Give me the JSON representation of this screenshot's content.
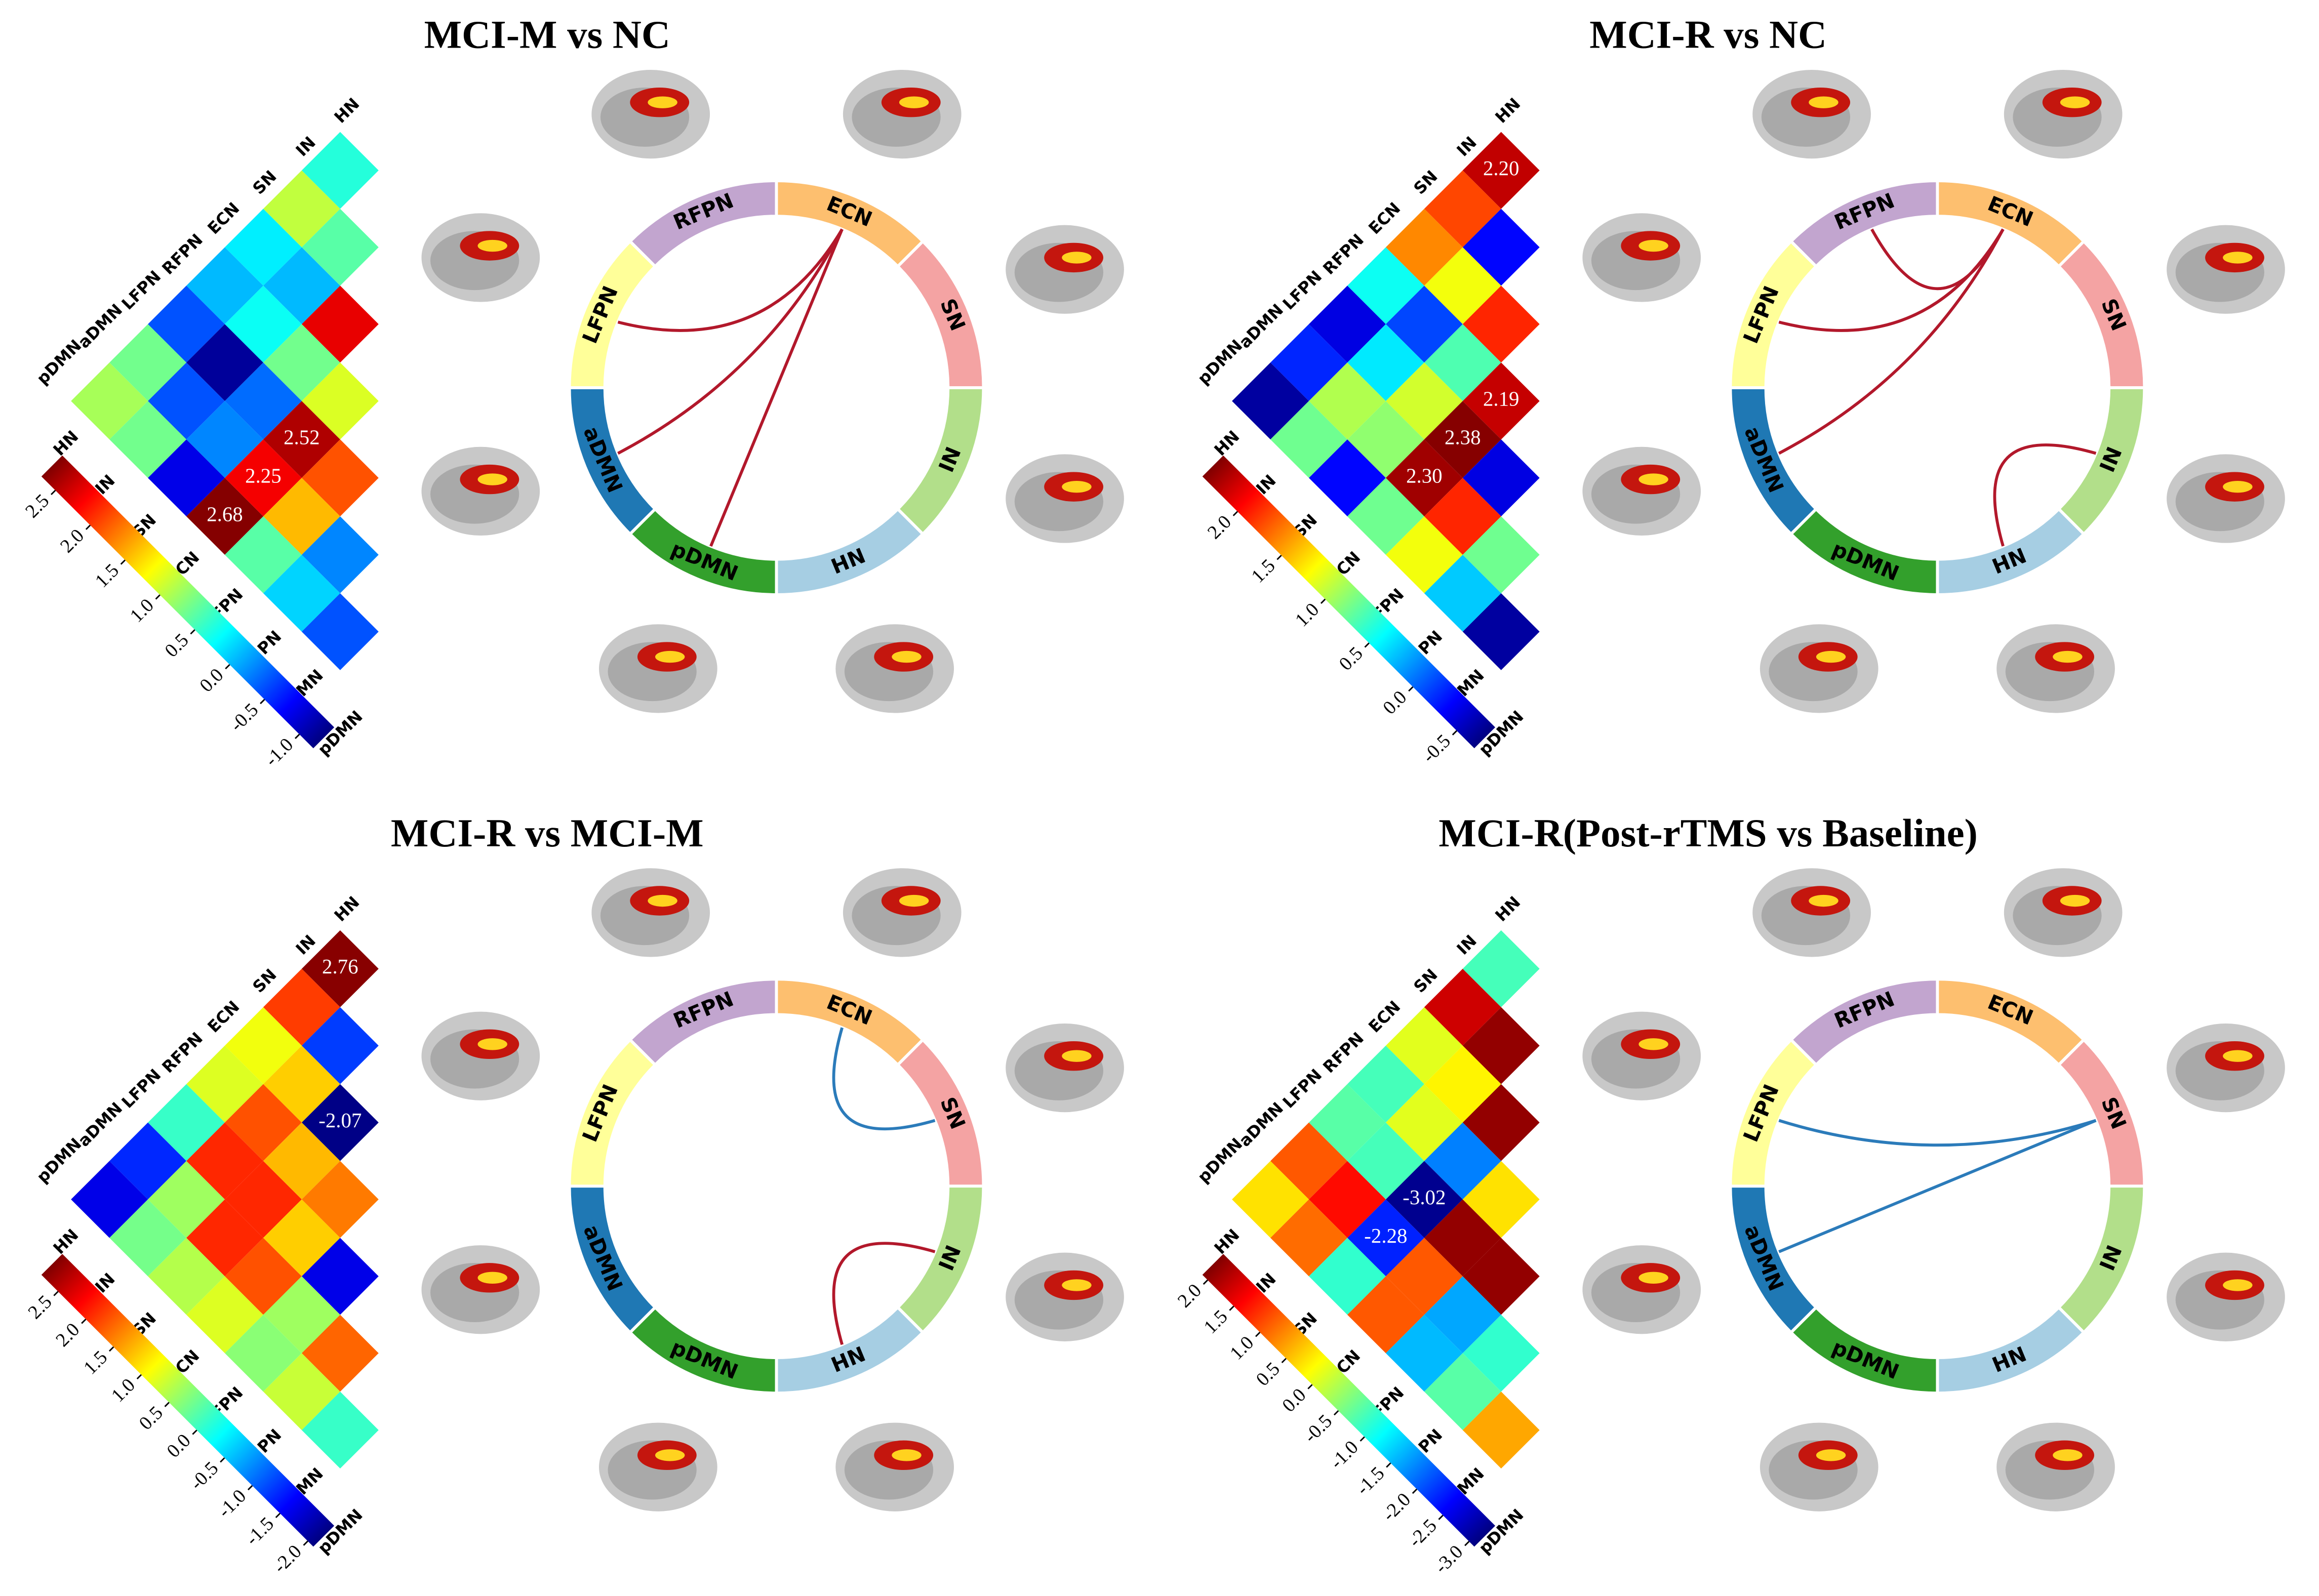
{
  "chart_data": [
    {
      "type": "heatmap",
      "title": "MCI-M vs NC",
      "networks": [
        "HN",
        "IN",
        "SN",
        "ECN",
        "RFPN",
        "LFPN",
        "aDMN",
        "pDMN"
      ],
      "values": [
        0.4,
        1.0,
        0.2,
        0.0,
        -0.4,
        0.7,
        0.9,
        0.6,
        0.0,
        0.3,
        -1.1,
        -0.4,
        0.7,
        2.3,
        0.7,
        -0.3,
        -0.2,
        -0.8,
        1.1,
        2.52,
        2.25,
        2.68,
        1.9,
        1.5,
        0.6,
        -0.2,
        0.1,
        -0.4
      ],
      "value_labels": [
        null,
        null,
        null,
        null,
        null,
        null,
        null,
        null,
        null,
        null,
        null,
        null,
        null,
        null,
        null,
        null,
        null,
        null,
        null,
        "2.52",
        "2.25",
        "2.68",
        null,
        null,
        null,
        null,
        null,
        null
      ],
      "clim": [
        -1.2,
        2.7
      ],
      "colorbar_ticks": [
        2.5,
        {
          "value": 2.0,
          "label": "2.0"
        },
        1.5,
        {
          "value": 1.0,
          "label": "1.0"
        },
        0.5,
        {
          "value": 0,
          "label": "0.0"
        },
        -0.5,
        {
          "value": -1.0,
          "label": "-1.0"
        }
      ],
      "chord": {
        "segments": [
          {
            "name": "RFPN",
            "color": "#c2a5cf"
          },
          {
            "name": "ECN",
            "color": "#fdbf6f"
          },
          {
            "name": "SN",
            "color": "#f4a3a3"
          },
          {
            "name": "IN",
            "color": "#b2df8a"
          },
          {
            "name": "HN",
            "color": "#a6cee3"
          },
          {
            "name": "pDMN",
            "color": "#33a02c"
          },
          {
            "name": "aDMN",
            "color": "#1f78b4"
          },
          {
            "name": "LFPN",
            "color": "#ffff99"
          }
        ],
        "links": [
          {
            "from": "ECN",
            "to": "LFPN",
            "color": "#b2182b"
          },
          {
            "from": "ECN",
            "to": "aDMN",
            "color": "#b2182b"
          },
          {
            "from": "ECN",
            "to": "pDMN",
            "color": "#b2182b"
          }
        ]
      }
    },
    {
      "type": "heatmap",
      "title": "MCI-R vs NC",
      "networks": [
        "HN",
        "IN",
        "SN",
        "ECN",
        "RFPN",
        "LFPN",
        "aDMN",
        "pDMN"
      ],
      "values": [
        2.2,
        1.8,
        1.6,
        0.5,
        -0.4,
        -0.2,
        -0.6,
        -0.3,
        1.2,
        -0.1,
        0.4,
        1.0,
        0.8,
        1.9,
        0.7,
        1.1,
        0.9,
        -0.3,
        2.19,
        2.38,
        2.3,
        0.8,
        -0.4,
        1.9,
        1.2,
        0.8,
        0.3,
        -0.6
      ],
      "value_labels": [
        "2.20",
        null,
        null,
        null,
        null,
        null,
        null,
        null,
        null,
        null,
        null,
        null,
        null,
        null,
        null,
        null,
        null,
        null,
        "2.19",
        "2.38",
        "2.30",
        null,
        null,
        null,
        null,
        null,
        null,
        null
      ],
      "clim": [
        -0.7,
        2.4
      ],
      "colorbar_ticks": [
        {
          "value": 2.0,
          "label": "2.0"
        },
        1.5,
        {
          "value": 1.0,
          "label": "1.0"
        },
        0.5,
        {
          "value": 0,
          "label": "0.0"
        },
        -0.5
      ],
      "chord": {
        "segments": [
          {
            "name": "RFPN",
            "color": "#c2a5cf"
          },
          {
            "name": "ECN",
            "color": "#fdbf6f"
          },
          {
            "name": "SN",
            "color": "#f4a3a3"
          },
          {
            "name": "IN",
            "color": "#b2df8a"
          },
          {
            "name": "HN",
            "color": "#a6cee3"
          },
          {
            "name": "pDMN",
            "color": "#33a02c"
          },
          {
            "name": "aDMN",
            "color": "#1f78b4"
          },
          {
            "name": "LFPN",
            "color": "#ffff99"
          }
        ],
        "links": [
          {
            "from": "RFPN",
            "to": "ECN",
            "color": "#b2182b"
          },
          {
            "from": "ECN",
            "to": "LFPN",
            "color": "#b2182b"
          },
          {
            "from": "ECN",
            "to": "aDMN",
            "color": "#b2182b"
          },
          {
            "from": "IN",
            "to": "HN",
            "color": "#b2182b"
          }
        ]
      }
    },
    {
      "type": "heatmap",
      "title": "MCI-R vs MCI-M",
      "networks": [
        "HN",
        "IN",
        "SN",
        "ECN",
        "RFPN",
        "LFPN",
        "aDMN",
        "pDMN"
      ],
      "values": [
        2.76,
        1.9,
        0.9,
        0.8,
        0.0,
        -1.3,
        -1.6,
        -1.2,
        1.2,
        1.8,
        2.0,
        0.5,
        0.3,
        -2.07,
        1.3,
        2.0,
        2.0,
        0.6,
        1.6,
        1.2,
        1.8,
        0.8,
        -1.6,
        0.5,
        0.4,
        1.7,
        0.7,
        0.0
      ],
      "value_labels": [
        "2.76",
        null,
        null,
        null,
        null,
        null,
        null,
        null,
        null,
        null,
        null,
        null,
        null,
        "-2.07",
        null,
        null,
        null,
        null,
        null,
        null,
        null,
        null,
        null,
        null,
        null,
        null,
        null,
        null
      ],
      "clim": [
        -2.1,
        2.8
      ],
      "colorbar_ticks": [
        2.5,
        {
          "value": 2.0,
          "label": "2.0"
        },
        1.5,
        {
          "value": 1.0,
          "label": "1.0"
        },
        0.5,
        {
          "value": 0,
          "label": "0.0"
        },
        -0.5,
        {
          "value": -1.0,
          "label": "-1.0"
        },
        -1.5,
        {
          "value": -2.0,
          "label": "-2.0"
        }
      ],
      "chord": {
        "segments": [
          {
            "name": "RFPN",
            "color": "#c2a5cf"
          },
          {
            "name": "ECN",
            "color": "#fdbf6f"
          },
          {
            "name": "SN",
            "color": "#f4a3a3"
          },
          {
            "name": "IN",
            "color": "#b2df8a"
          },
          {
            "name": "HN",
            "color": "#a6cee3"
          },
          {
            "name": "pDMN",
            "color": "#33a02c"
          },
          {
            "name": "aDMN",
            "color": "#1f78b4"
          },
          {
            "name": "LFPN",
            "color": "#ffff99"
          }
        ],
        "links": [
          {
            "from": "ECN",
            "to": "SN",
            "color": "#2b7bba"
          },
          {
            "from": "IN",
            "to": "HN",
            "color": "#b2182b"
          }
        ]
      }
    },
    {
      "type": "heatmap",
      "title": "MCI-R(Post-rTMS vs Baseline)",
      "networks": [
        "HN",
        "IN",
        "SN",
        "ECN",
        "RFPN",
        "LFPN",
        "aDMN",
        "pDMN"
      ],
      "values": [
        -0.8,
        1.7,
        0.0,
        -0.8,
        -0.7,
        1.0,
        0.3,
        2.0,
        0.2,
        0.0,
        -0.8,
        1.4,
        0.9,
        2.0,
        -1.8,
        -3.02,
        -2.28,
        -0.9,
        0.3,
        2.0,
        1.0,
        1.0,
        2.0,
        -1.6,
        -1.5,
        -0.9,
        -0.7,
        0.6
      ],
      "value_labels": [
        null,
        null,
        null,
        null,
        null,
        null,
        null,
        null,
        null,
        null,
        null,
        null,
        null,
        null,
        null,
        "-3.02",
        "-2.28",
        null,
        null,
        null,
        null,
        null,
        null,
        null,
        null,
        null,
        null,
        null
      ],
      "clim": [
        -3.1,
        2.1
      ],
      "colorbar_ticks": [
        {
          "value": 2.0,
          "label": "2.0"
        },
        1.5,
        {
          "value": 1.0,
          "label": "1.0"
        },
        0.5,
        {
          "value": 0,
          "label": "0.0"
        },
        -0.5,
        {
          "value": -1.0,
          "label": "-1.0"
        },
        -1.5,
        {
          "value": -2.0,
          "label": "-2.0"
        },
        -2.5,
        {
          "value": -3.0,
          "label": "-3.0"
        }
      ],
      "chord": {
        "segments": [
          {
            "name": "RFPN",
            "color": "#c2a5cf"
          },
          {
            "name": "ECN",
            "color": "#fdbf6f"
          },
          {
            "name": "SN",
            "color": "#f4a3a3"
          },
          {
            "name": "IN",
            "color": "#b2df8a"
          },
          {
            "name": "HN",
            "color": "#a6cee3"
          },
          {
            "name": "pDMN",
            "color": "#33a02c"
          },
          {
            "name": "aDMN",
            "color": "#1f78b4"
          },
          {
            "name": "LFPN",
            "color": "#ffff99"
          }
        ],
        "links": [
          {
            "from": "SN",
            "to": "LFPN",
            "color": "#2b7bba"
          },
          {
            "from": "SN",
            "to": "aDMN",
            "color": "#2b7bba"
          }
        ]
      }
    }
  ]
}
